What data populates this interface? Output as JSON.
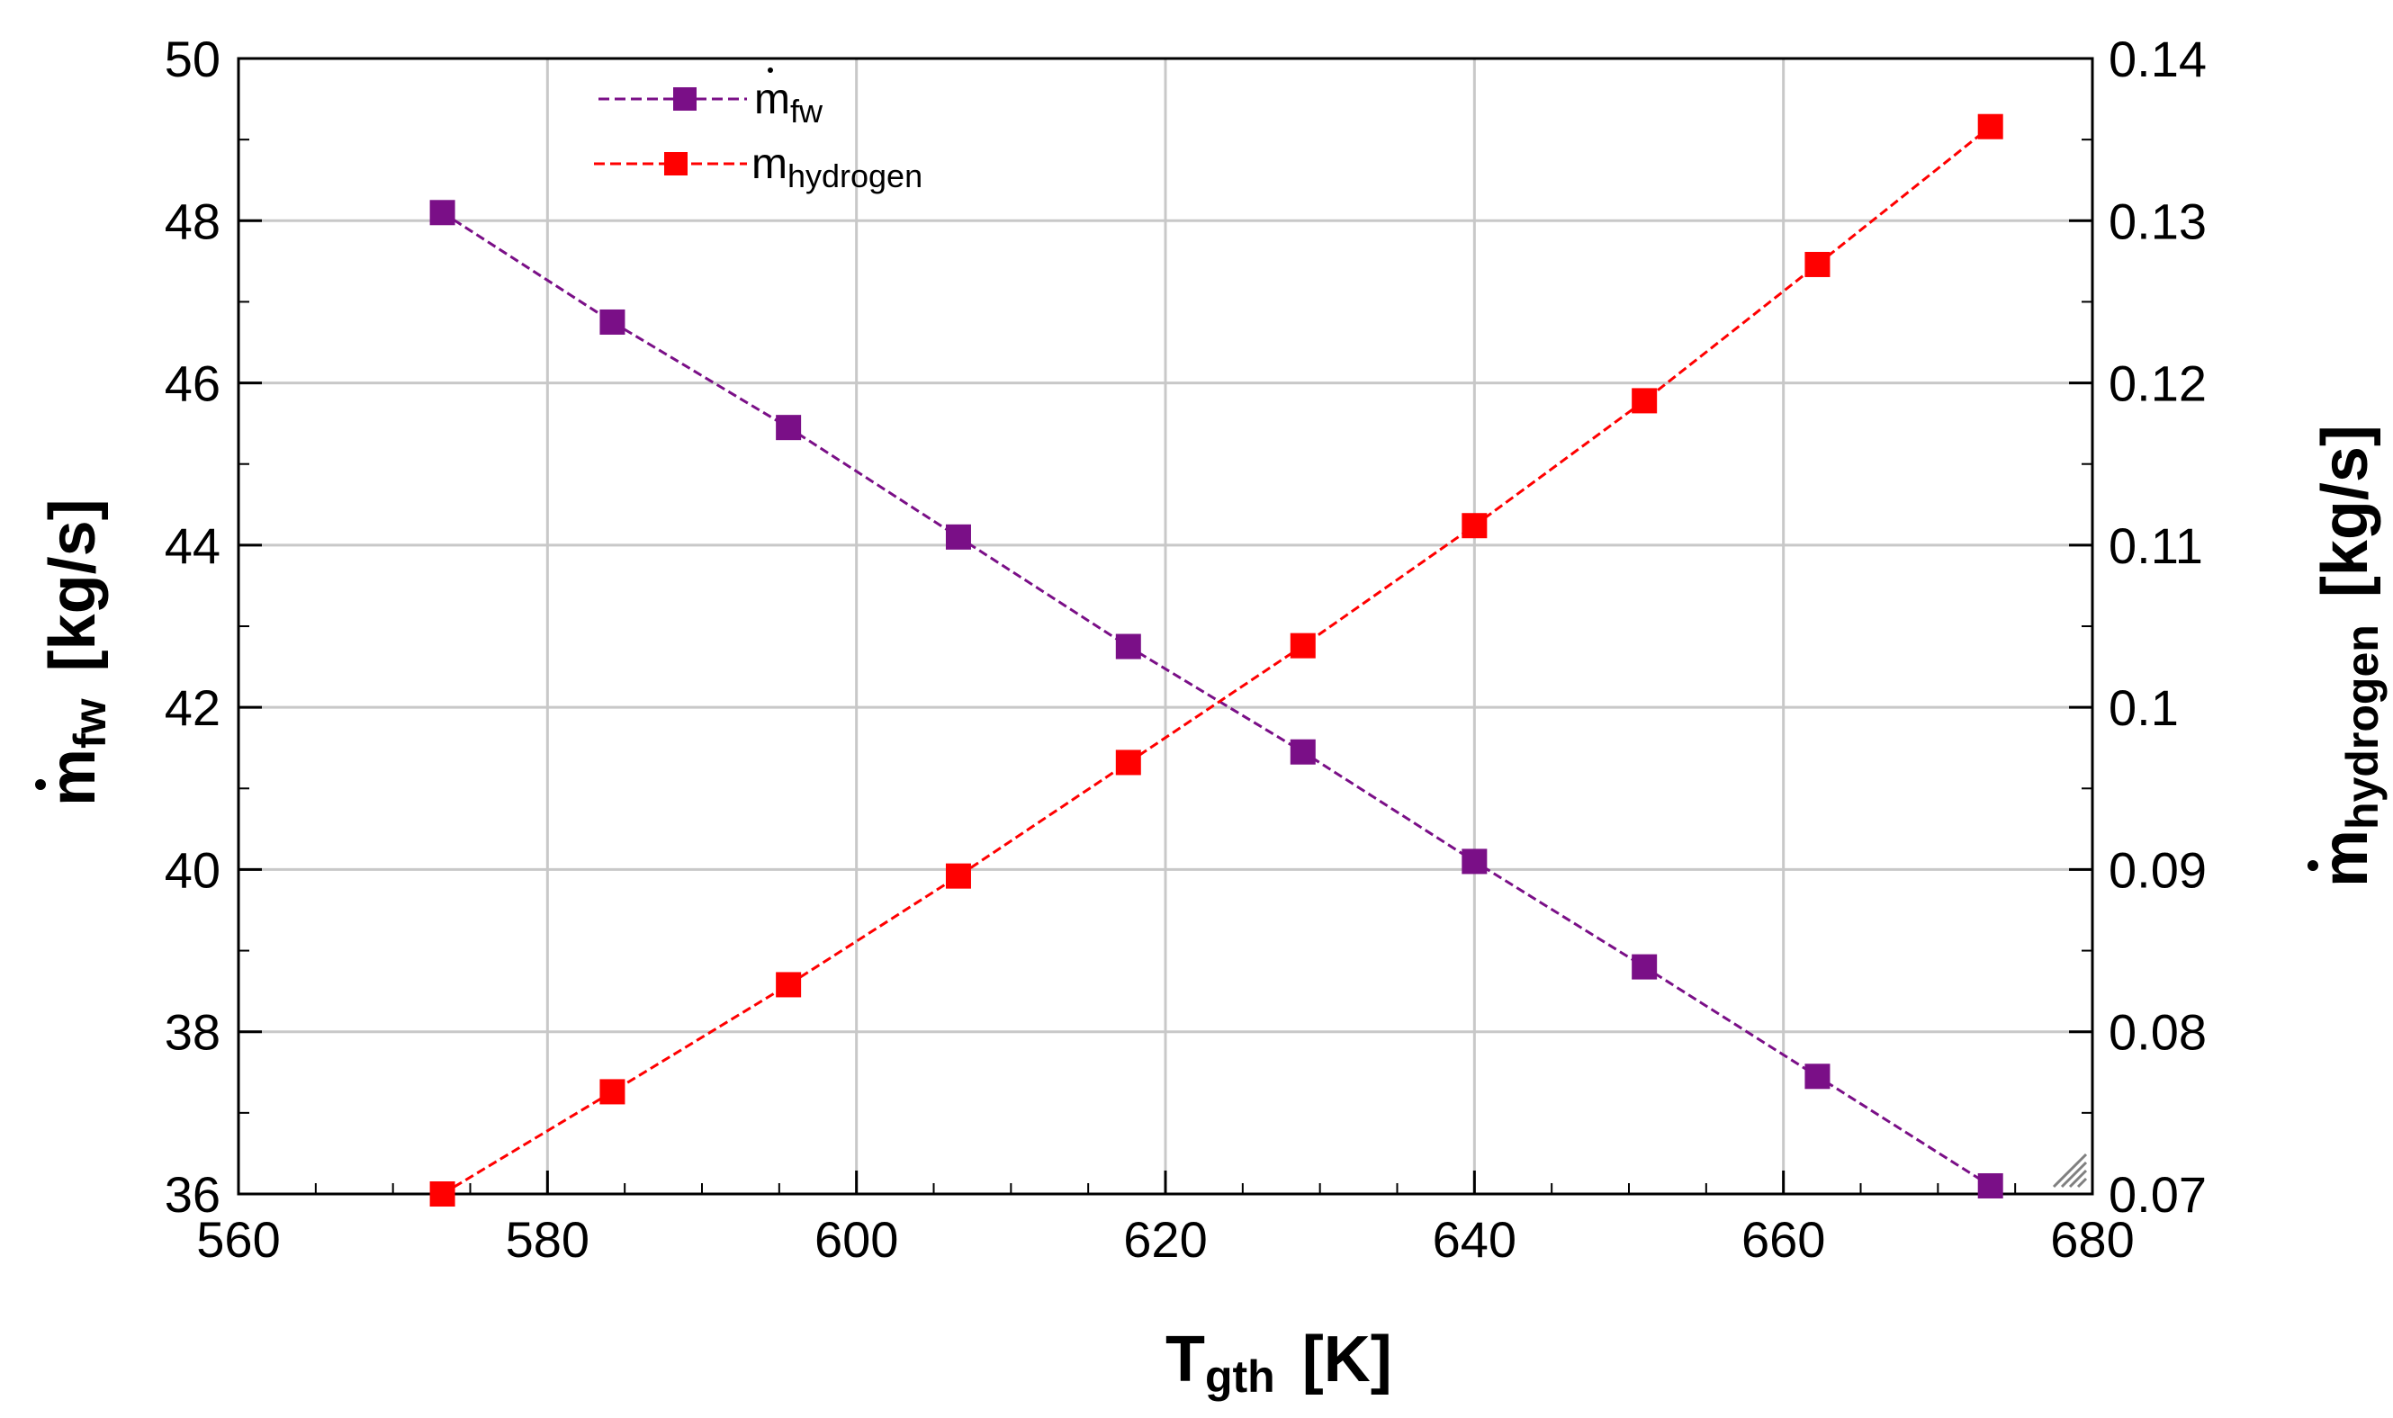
{
  "chart_data": {
    "type": "line",
    "x": [
      573.2,
      584.2,
      595.6,
      606.6,
      617.6,
      628.9,
      640.0,
      651.0,
      662.2,
      673.4
    ],
    "x_ticks": [
      "560",
      "580",
      "600",
      "620",
      "640",
      "660",
      "680"
    ],
    "y_left_ticks": [
      "36",
      "38",
      "40",
      "42",
      "44",
      "46",
      "48",
      "50"
    ],
    "y_right_ticks": [
      "0.07",
      "0.08",
      "0.09",
      "0.1",
      "0.11",
      "0.12",
      "0.13",
      "0.14"
    ],
    "xlim": [
      560,
      680
    ],
    "ylim_left": [
      36,
      50
    ],
    "ylim_right": [
      0.07,
      0.14
    ],
    "grid": true,
    "xlabel": {
      "main": "T",
      "sub": "gth",
      "unit": "[K]"
    },
    "ylabel_left": {
      "main": "m",
      "sub": "fw",
      "unit": "[kg/s]"
    },
    "ylabel_right": {
      "main": "m",
      "sub": "hydrogen",
      "unit": "[kg/s]"
    },
    "legend_position": "top-left",
    "series": [
      {
        "name": "m_fw",
        "legend_main": "m",
        "legend_sub": "fw",
        "axis": "left",
        "color": "#7a0f87",
        "values": [
          48.1,
          46.75,
          45.45,
          44.1,
          42.75,
          41.45,
          40.1,
          38.8,
          37.45,
          36.1
        ]
      },
      {
        "name": "m_hydrogen",
        "legend_main": "m",
        "legend_sub": "hydrogen",
        "axis": "right",
        "color": "#ff0000",
        "values": [
          0.07,
          0.0763,
          0.0829,
          0.0896,
          0.0966,
          0.1038,
          0.1112,
          0.1189,
          0.1273,
          0.1358
        ]
      }
    ]
  }
}
